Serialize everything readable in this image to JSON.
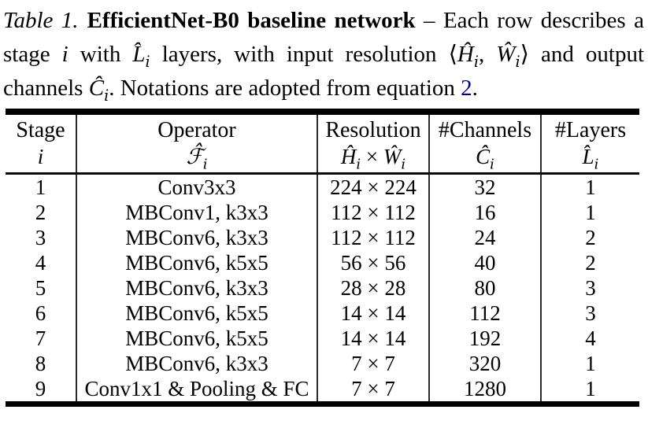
{
  "page": {
    "background": "#ffffff",
    "text_color": "#000000",
    "link_color": "#00008b",
    "rule_color": "#000000"
  },
  "caption": {
    "segments": [
      {
        "text": "Table 1.",
        "style": "label"
      },
      {
        "text": "EfficientNet-B0 baseline network",
        "style": "bold"
      },
      {
        "text": " – Each row describes a stage ",
        "style": "normal"
      },
      {
        "text": "i",
        "style": "math"
      },
      {
        "text": " with ",
        "style": "normal"
      },
      {
        "text": "L̂",
        "style": "math"
      },
      {
        "text": "i",
        "style": "sub"
      },
      {
        "text": " layers, with input resolution ⟨",
        "style": "normal"
      },
      {
        "text": "Ĥ",
        "style": "math"
      },
      {
        "text": "i",
        "style": "sub"
      },
      {
        "text": ", ",
        "style": "normal"
      },
      {
        "text": "Ŵ",
        "style": "math"
      },
      {
        "text": "i",
        "style": "sub"
      },
      {
        "text": "⟩ and output channels ",
        "style": "normal"
      },
      {
        "text": "Ĉ",
        "style": "math"
      },
      {
        "text": "i",
        "style": "sub"
      },
      {
        "text": ". Notations are adopted from equation ",
        "style": "normal"
      },
      {
        "text": "2",
        "style": "link"
      },
      {
        "text": ".",
        "style": "normal"
      }
    ]
  },
  "chart_data": {
    "type": "table",
    "title": "Table 1. EfficientNet-B0 baseline network",
    "columns": [
      {
        "title": "Stage",
        "symbol_tokens": [
          {
            "m": "i"
          }
        ]
      },
      {
        "title": "Operator",
        "symbol_tokens": [
          {
            "m": "ℱ̂"
          },
          {
            "s": "i"
          }
        ]
      },
      {
        "title": "Resolution",
        "symbol_tokens": [
          {
            "m": "Ĥ"
          },
          {
            "s": "i"
          },
          {
            "n": " × "
          },
          {
            "m": "Ŵ"
          },
          {
            "s": "i"
          }
        ]
      },
      {
        "title": "#Channels",
        "symbol_tokens": [
          {
            "m": "Ĉ"
          },
          {
            "s": "i"
          }
        ]
      },
      {
        "title": "#Layers",
        "symbol_tokens": [
          {
            "m": "L̂"
          },
          {
            "s": "i"
          }
        ]
      }
    ],
    "rows": [
      [
        "1",
        "Conv3x3",
        "224 × 224",
        "32",
        "1"
      ],
      [
        "2",
        "MBConv1, k3x3",
        "112 × 112",
        "16",
        "1"
      ],
      [
        "3",
        "MBConv6, k3x3",
        "112 × 112",
        "24",
        "2"
      ],
      [
        "4",
        "MBConv6, k5x5",
        "56 × 56",
        "40",
        "2"
      ],
      [
        "5",
        "MBConv6, k3x3",
        "28 × 28",
        "80",
        "3"
      ],
      [
        "6",
        "MBConv6, k5x5",
        "14 × 14",
        "112",
        "3"
      ],
      [
        "7",
        "MBConv6, k5x5",
        "14 × 14",
        "192",
        "4"
      ],
      [
        "8",
        "MBConv6, k3x3",
        "7 × 7",
        "320",
        "1"
      ],
      [
        "9",
        "Conv1x1 & Pooling & FC",
        "7 × 7",
        "1280",
        "1"
      ]
    ]
  }
}
